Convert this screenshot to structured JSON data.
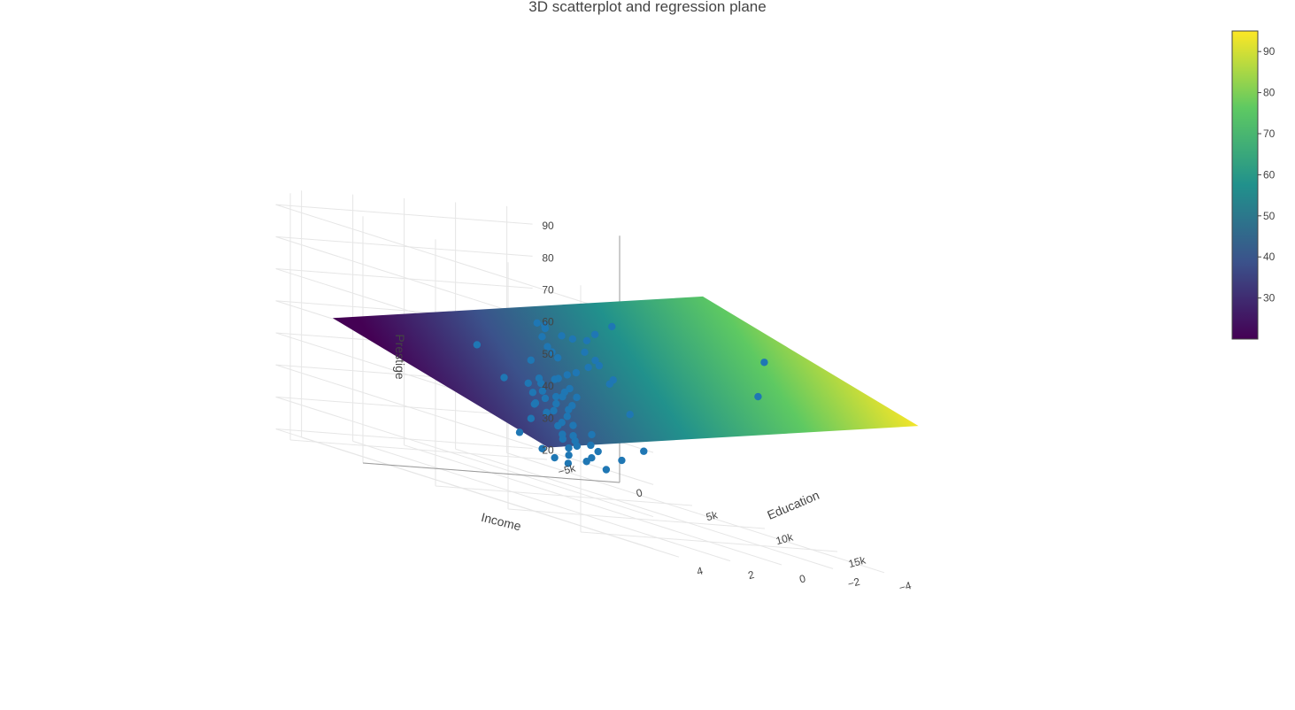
{
  "chart_data": {
    "type": "scatter",
    "title": "3D scatterplot and regression plane",
    "axes": {
      "x": {
        "label": "Income",
        "ticks": [
          "−5k",
          "0",
          "5k",
          "10k",
          "15k"
        ]
      },
      "y": {
        "label": "Education",
        "ticks": [
          "−4",
          "−2",
          "0",
          "2",
          "4"
        ]
      },
      "z": {
        "label": "Prestige",
        "ticks": [
          "20",
          "30",
          "40",
          "50",
          "60",
          "70",
          "80",
          "90"
        ]
      }
    },
    "grid": true,
    "colorscale": "viridis",
    "colors": {
      "marker": "#1f77b4",
      "viridis": [
        "#440154",
        "#3b528b",
        "#21918c",
        "#5ec962",
        "#fde725"
      ]
    },
    "colorbar": {
      "ticks": [
        "30",
        "40",
        "50",
        "60",
        "70",
        "80",
        "90"
      ],
      "range": [
        20,
        95
      ],
      "placement": "right"
    },
    "plane": {
      "colorscale_range": [
        20,
        95
      ]
    },
    "points": [
      {
        "x": 25879,
        "y": 4.0,
        "z": 87.2
      },
      {
        "x": 19263,
        "y": 0.5,
        "z": 69.1
      },
      {
        "x": 14500,
        "y": 3.5,
        "z": 82.3
      },
      {
        "x": 12800,
        "y": 3.2,
        "z": 77.6
      },
      {
        "x": 11000,
        "y": 2.5,
        "z": 73.5
      },
      {
        "x": 10700,
        "y": 2.0,
        "z": 67.2
      },
      {
        "x": 10500,
        "y": 2.3,
        "z": 69.3
      },
      {
        "x": 10200,
        "y": 2.6,
        "z": 72.8
      },
      {
        "x": 9800,
        "y": 2.8,
        "z": 73.1
      },
      {
        "x": 8800,
        "y": 2.9,
        "z": 75.0
      },
      {
        "x": 8100,
        "y": 0.8,
        "z": 62.0
      },
      {
        "x": 7600,
        "y": 2.2,
        "z": 72.6
      },
      {
        "x": 7400,
        "y": 2.4,
        "z": 73.9
      },
      {
        "x": 7000,
        "y": 1.0,
        "z": 58.0
      },
      {
        "x": 6900,
        "y": -1.5,
        "z": 47.0
      },
      {
        "x": 6700,
        "y": 1.6,
        "z": 66.0
      },
      {
        "x": 6300,
        "y": 1.2,
        "z": 64.0
      },
      {
        "x": 6200,
        "y": 0.2,
        "z": 58.0
      },
      {
        "x": 6000,
        "y": 0.8,
        "z": 62.0
      },
      {
        "x": 5800,
        "y": 1.3,
        "z": 68.0
      },
      {
        "x": 5500,
        "y": 0.5,
        "z": 55.0
      },
      {
        "x": 5400,
        "y": 0.0,
        "z": 52.0
      },
      {
        "x": 5200,
        "y": -3.0,
        "z": 34.0
      },
      {
        "x": 5000,
        "y": -0.5,
        "z": 49.0
      },
      {
        "x": 4900,
        "y": 0.3,
        "z": 54.0
      },
      {
        "x": 4700,
        "y": -0.2,
        "z": 50.0
      },
      {
        "x": 4500,
        "y": 1.0,
        "z": 59.0
      },
      {
        "x": 4200,
        "y": -0.4,
        "z": 48.0
      },
      {
        "x": 4000,
        "y": 0.4,
        "z": 53.0
      },
      {
        "x": 3800,
        "y": -1.0,
        "z": 45.0
      },
      {
        "x": 3600,
        "y": 0.1,
        "z": 51.0
      },
      {
        "x": 3400,
        "y": -0.6,
        "z": 47.0
      },
      {
        "x": 3200,
        "y": -1.2,
        "z": 43.0
      },
      {
        "x": 3000,
        "y": -0.3,
        "z": 48.0
      },
      {
        "x": 2900,
        "y": 0.2,
        "z": 50.0
      },
      {
        "x": 2800,
        "y": -3.5,
        "z": 28.0
      },
      {
        "x": 2700,
        "y": -1.0,
        "z": 44.0
      },
      {
        "x": 2500,
        "y": -2.5,
        "z": 35.0
      },
      {
        "x": 2400,
        "y": -1.6,
        "z": 40.0
      },
      {
        "x": 2300,
        "y": -0.8,
        "z": 45.0
      },
      {
        "x": 2200,
        "y": 1.8,
        "z": 60.0
      },
      {
        "x": 2100,
        "y": -2.0,
        "z": 37.0
      },
      {
        "x": 2000,
        "y": -1.3,
        "z": 41.0
      },
      {
        "x": 1900,
        "y": -2.8,
        "z": 31.0
      },
      {
        "x": 1800,
        "y": -0.6,
        "z": 46.0
      },
      {
        "x": 1700,
        "y": -3.2,
        "z": 29.0
      },
      {
        "x": 1500,
        "y": -1.9,
        "z": 37.0
      },
      {
        "x": 1400,
        "y": -2.4,
        "z": 33.0
      },
      {
        "x": 1200,
        "y": -3.8,
        "z": 23.0
      },
      {
        "x": 1100,
        "y": -1.1,
        "z": 42.0
      },
      {
        "x": 1000,
        "y": -2.7,
        "z": 31.0
      },
      {
        "x": 900,
        "y": -3.4,
        "z": 26.0
      },
      {
        "x": 800,
        "y": -1.7,
        "z": 39.0
      },
      {
        "x": 700,
        "y": -2.2,
        "z": 35.0
      },
      {
        "x": 600,
        "y": -3.0,
        "z": 29.0
      },
      {
        "x": 500,
        "y": -1.4,
        "z": 41.0
      },
      {
        "x": 300,
        "y": -2.6,
        "z": 32.0
      },
      {
        "x": 200,
        "y": -3.6,
        "z": 24.0
      },
      {
        "x": 0,
        "y": -0.5,
        "z": 48.0
      },
      {
        "x": -200,
        "y": -2.9,
        "z": 30.0
      },
      {
        "x": -500,
        "y": -3.3,
        "z": 27.0
      },
      {
        "x": -800,
        "y": -2.0,
        "z": 35.0
      },
      {
        "x": -1200,
        "y": -3.7,
        "z": 24.0
      },
      {
        "x": -1600,
        "y": -3.9,
        "z": 21.0
      },
      {
        "x": -2000,
        "y": -3.6,
        "z": 22.0
      },
      {
        "x": -2500,
        "y": -3.4,
        "z": 24.0
      },
      {
        "x": -3000,
        "y": -2.8,
        "z": 28.0
      },
      {
        "x": 9200,
        "y": 1.0,
        "z": 64.0
      },
      {
        "x": 8400,
        "y": 0.0,
        "z": 59.0
      },
      {
        "x": 7800,
        "y": -0.2,
        "z": 57.0
      }
    ]
  }
}
